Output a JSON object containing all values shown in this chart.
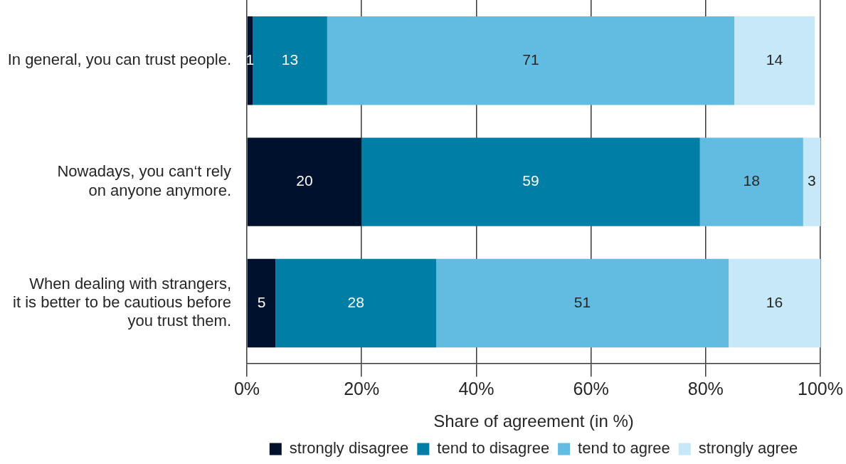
{
  "chart_data": {
    "type": "bar",
    "orientation": "horizontal",
    "stacked": true,
    "categories": [
      "In general, you can trust people.",
      "Nowadays, you can‘t rely\non anyone anymore.",
      "When dealing with strangers,\nit is better to be cautious before\nyou trust them."
    ],
    "series": [
      {
        "name": "strongly disagree",
        "color": "#00112e",
        "values": [
          1,
          20,
          5
        ]
      },
      {
        "name": "tend to disagree",
        "color": "#007ea6",
        "values": [
          13,
          59,
          28
        ]
      },
      {
        "name": "tend to agree",
        "color": "#62bbe0",
        "values": [
          71,
          18,
          51
        ]
      },
      {
        "name": "strongly agree",
        "color": "#c6e8f8",
        "values": [
          14,
          3,
          16
        ]
      }
    ],
    "xlim": [
      0,
      100
    ],
    "xticks": [
      {
        "value": 0,
        "label": "0%"
      },
      {
        "value": 20,
        "label": "20%"
      },
      {
        "value": 40,
        "label": "40%"
      },
      {
        "value": 60,
        "label": "60%"
      },
      {
        "value": 80,
        "label": "80%"
      },
      {
        "value": 100,
        "label": "100%"
      }
    ],
    "xlabel": "Share of agreement (in %)",
    "grid": "x",
    "legend": "bottom",
    "data_labels": true
  }
}
